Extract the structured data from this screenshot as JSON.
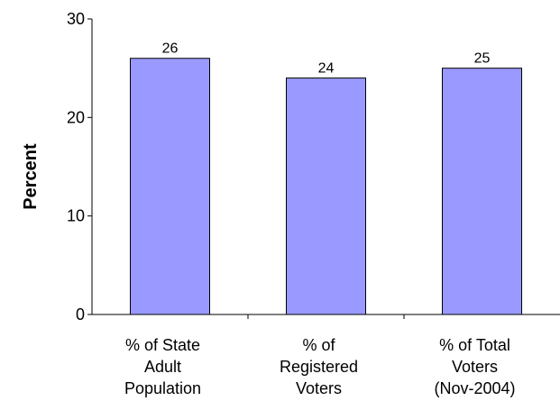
{
  "chart_data": {
    "type": "bar",
    "categories": [
      [
        "% of  State",
        "Adult",
        "Population"
      ],
      [
        "% of",
        "Registered",
        "Voters"
      ],
      [
        "% of Total",
        "Voters",
        "(Nov-2004)"
      ]
    ],
    "values": [
      26,
      24,
      25
    ],
    "value_labels": [
      "26",
      "24",
      "25"
    ],
    "ylabel": "Percent",
    "ylim": [
      0,
      30
    ],
    "yticks": [
      0,
      10,
      20,
      30
    ],
    "ytick_labels": [
      "0",
      "10",
      "20",
      "30"
    ],
    "bar_color": "#9999ff",
    "grid": false,
    "legend": "none"
  }
}
